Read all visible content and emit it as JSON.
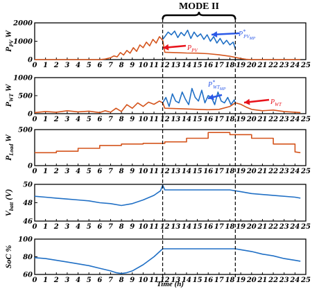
{
  "chart_data": {
    "type": "line",
    "mode_label": "MODE II",
    "mode_range": [
      11.8,
      18.5
    ],
    "xlabel": "Time (h)",
    "x_ticks": [
      0,
      1,
      2,
      3,
      4,
      5,
      6,
      7,
      8,
      9,
      10,
      11,
      12,
      13,
      14,
      15,
      16,
      17,
      18,
      19,
      20,
      21,
      22,
      23,
      24,
      25
    ],
    "colors": {
      "blue": "#1f6fc5",
      "orange": "#d4541c",
      "arrow_red": "#e8141c",
      "arrow_blue": "#2b59e8"
    },
    "panels": [
      {
        "id": "pv",
        "ylabel": {
          "main": "P",
          "sub": "PV",
          "unit": "W"
        },
        "ylim": [
          0,
          2000
        ],
        "yticks": [
          0,
          1000,
          2000
        ],
        "annotations": [
          {
            "text_main": "P",
            "text_sub": "PV",
            "color": "arrow_red"
          },
          {
            "text_main": "P",
            "text_sub": "PV",
            "sup": "*",
            "text_sub2": "MP",
            "color": "arrow_blue"
          }
        ],
        "series": [
          {
            "name": "P*PV_MP",
            "color": "blue",
            "x": [
              11.8,
              12.0,
              12.3,
              12.6,
              12.9,
              13.2,
              13.5,
              13.8,
              14.1,
              14.4,
              14.7,
              15.0,
              15.3,
              15.6,
              15.9,
              16.2,
              16.5,
              16.8,
              17.1,
              17.4,
              17.7,
              18.0,
              18.3,
              18.5
            ],
            "y": [
              1100,
              1250,
              1500,
              1350,
              1550,
              1200,
              1480,
              1300,
              1600,
              1150,
              1500,
              1250,
              1400,
              1100,
              1350,
              1000,
              1250,
              900,
              1150,
              850,
              1050,
              800,
              950,
              600
            ]
          },
          {
            "name": "P_PV",
            "color": "orange",
            "x": [
              0,
              6.0,
              6.5,
              7.0,
              7.3,
              7.6,
              7.9,
              8.2,
              8.5,
              8.8,
              9.1,
              9.4,
              9.7,
              10.0,
              10.3,
              10.6,
              10.9,
              11.2,
              11.5,
              11.8,
              12.0,
              13,
              14,
              15,
              16,
              17,
              18,
              18.5,
              19.0,
              19.5,
              20,
              24.5
            ],
            "y": [
              0,
              0,
              30,
              100,
              200,
              150,
              380,
              250,
              500,
              350,
              650,
              450,
              800,
              650,
              950,
              750,
              1100,
              900,
              1250,
              1050,
              400,
              380,
              360,
              350,
              320,
              260,
              180,
              120,
              60,
              20,
              0,
              0
            ]
          }
        ]
      },
      {
        "id": "wt",
        "ylabel": {
          "main": "P",
          "sub": "WT",
          "unit": "W"
        },
        "ylim": [
          0,
          1000
        ],
        "yticks": [
          0,
          500,
          1000
        ],
        "annotations": [
          {
            "text_main": "P",
            "text_sub": "WT",
            "sup": "*",
            "text_sub2": "MP",
            "color": "arrow_blue"
          },
          {
            "text_main": "P",
            "text_sub": "WT",
            "color": "arrow_red"
          }
        ],
        "series": [
          {
            "name": "P*WT_MP",
            "color": "blue",
            "x": [
              11.8,
              12.1,
              12.4,
              12.7,
              13.0,
              13.3,
              13.6,
              13.9,
              14.2,
              14.5,
              14.8,
              15.1,
              15.4,
              15.7,
              16.0,
              16.3,
              16.6,
              16.9,
              17.2,
              17.5,
              17.8,
              18.1,
              18.4,
              18.5
            ],
            "y": [
              300,
              450,
              200,
              550,
              350,
              300,
              600,
              400,
              250,
              700,
              450,
              350,
              650,
              300,
              500,
              450,
              250,
              600,
              350,
              300,
              450,
              250,
              380,
              300
            ]
          },
          {
            "name": "P_WT",
            "color": "orange",
            "x": [
              0,
              1,
              2,
              3,
              4,
              5,
              6,
              6.5,
              7,
              7.5,
              8,
              8.5,
              9,
              9.5,
              10,
              10.5,
              11,
              11.5,
              11.8,
              12,
              13,
              14,
              15,
              16,
              17,
              18,
              18.5,
              19,
              19.5,
              20,
              21,
              22,
              23,
              24,
              24.5
            ],
            "y": [
              30,
              60,
              40,
              80,
              50,
              70,
              30,
              80,
              40,
              150,
              60,
              250,
              150,
              300,
              200,
              320,
              260,
              350,
              300,
              150,
              140,
              130,
              120,
              110,
              120,
              200,
              300,
              260,
              180,
              120,
              80,
              100,
              60,
              40,
              30
            ]
          }
        ]
      },
      {
        "id": "load",
        "ylabel": {
          "main": "P",
          "sub": "Load",
          "unit": "W"
        },
        "ylim": [
          0,
          500
        ],
        "yticks": [
          0,
          500
        ],
        "series": [
          {
            "name": "P_Load",
            "color": "orange",
            "x": [
              0,
              2,
              2,
              4,
              4,
              6,
              6,
              8,
              8,
              10,
              10,
              12,
              12,
              14,
              14,
              16,
              16,
              18,
              18,
              20,
              20,
              22,
              22,
              24,
              24,
              24.5
            ],
            "y": [
              180,
              180,
              200,
              200,
              240,
              240,
              280,
              280,
              300,
              300,
              310,
              310,
              330,
              330,
              380,
              380,
              460,
              460,
              430,
              430,
              380,
              380,
              300,
              300,
              190,
              180
            ]
          }
        ]
      },
      {
        "id": "vbatt",
        "ylabel": {
          "main": "V",
          "sub": "batt",
          "unit": "(V)"
        },
        "ylim": [
          46,
          50
        ],
        "yticks": [
          46,
          48,
          50
        ],
        "series": [
          {
            "name": "V_batt",
            "color": "blue",
            "x": [
              0,
              1,
              2,
              3,
              4,
              5,
              6,
              7,
              8,
              9,
              10,
              11,
              11.6,
              11.8,
              12,
              14,
              16,
              18,
              18.5,
              19,
              20,
              22,
              24,
              24.5
            ],
            "y": [
              48.7,
              48.6,
              48.5,
              48.4,
              48.3,
              48.2,
              48.0,
              47.9,
              47.7,
              47.9,
              48.3,
              48.8,
              49.3,
              49.9,
              49.4,
              49.4,
              49.4,
              49.4,
              49.3,
              49.2,
              49.0,
              48.8,
              48.6,
              48.5
            ]
          }
        ]
      },
      {
        "id": "soc",
        "ylabel": {
          "main": "SoC",
          "sub": "",
          "unit": "%"
        },
        "ylim": [
          60,
          100
        ],
        "yticks": [
          60,
          80,
          100
        ],
        "series": [
          {
            "name": "SoC",
            "color": "blue",
            "x": [
              0,
              1,
              2,
              3,
              4,
              5,
              6,
              7,
              7.5,
              8,
              8.5,
              9,
              10,
              11,
              11.8,
              12,
              14,
              16,
              18,
              18.5,
              19,
              20,
              21,
              22,
              23,
              24,
              24.5
            ],
            "y": [
              79,
              78,
              76,
              74,
              72,
              70,
              67,
              64,
              62,
              61,
              62,
              64,
              71,
              80,
              89,
              89,
              89,
              89,
              89,
              89,
              88,
              86,
              83,
              81,
              78,
              76,
              75
            ]
          }
        ]
      }
    ]
  }
}
